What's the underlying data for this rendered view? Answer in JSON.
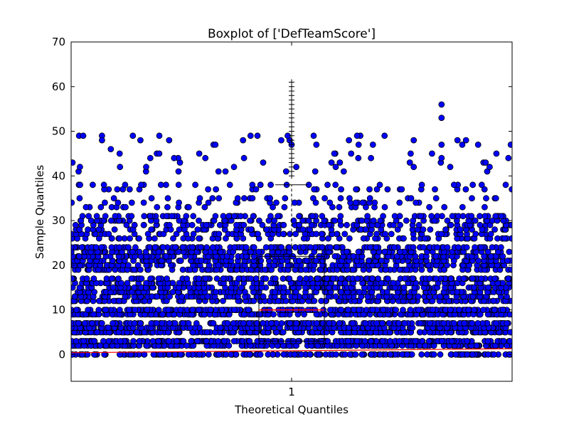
{
  "chart_data": {
    "type": "scatter",
    "title": "Boxplot of ['DefTeamScore']",
    "xlabel": "Theoretical Quantiles",
    "ylabel": "Sample Quantiles",
    "ylim": [
      -6,
      70
    ],
    "yticks": [
      0,
      10,
      20,
      30,
      40,
      50,
      60,
      70
    ],
    "xtick_labels": [
      "1"
    ],
    "grid": false,
    "legend": "none",
    "colors": {
      "points": "#0000ff",
      "point_edge": "#000000",
      "median": "#ff0000",
      "box": "#000000"
    },
    "score_levels": [
      0,
      2,
      3,
      5,
      6,
      7,
      9,
      10,
      12,
      13,
      14,
      15,
      16,
      17,
      19,
      20,
      21,
      22,
      23,
      24,
      26,
      27,
      28,
      29,
      30,
      31,
      33,
      34,
      35,
      37,
      38,
      41,
      42,
      43,
      44,
      45,
      47,
      48,
      49
    ],
    "outlier_points": [
      {
        "x": 0.02,
        "y": 42
      },
      {
        "x": 0.07,
        "y": 49
      },
      {
        "x": 0.07,
        "y": 48
      },
      {
        "x": 0.09,
        "y": 46
      },
      {
        "x": 0.11,
        "y": 45
      },
      {
        "x": 0.14,
        "y": 49
      },
      {
        "x": 0.2,
        "y": 49
      },
      {
        "x": 0.35,
        "y": 41
      },
      {
        "x": 0.36,
        "y": 38
      },
      {
        "x": 0.5,
        "y": 47
      },
      {
        "x": 0.55,
        "y": 49
      },
      {
        "x": 0.63,
        "y": 48
      },
      {
        "x": 0.77,
        "y": 45
      },
      {
        "x": 0.84,
        "y": 56
      },
      {
        "x": 0.84,
        "y": 53
      },
      {
        "x": 0.84,
        "y": 47
      },
      {
        "x": 0.84,
        "y": 44
      },
      {
        "x": 0.94,
        "y": 43
      }
    ],
    "boxplot": {
      "position": 1,
      "q1": 3,
      "median": 10,
      "q3": 22,
      "whisker_high": 38,
      "fliers": [
        40,
        41,
        42,
        43,
        44,
        45,
        46,
        47,
        48,
        49,
        50,
        51,
        52,
        53,
        54,
        55,
        56,
        57,
        58,
        59,
        60,
        61
      ]
    },
    "reference_line": {
      "y_start": 0.4,
      "y_end": 1.3
    }
  }
}
